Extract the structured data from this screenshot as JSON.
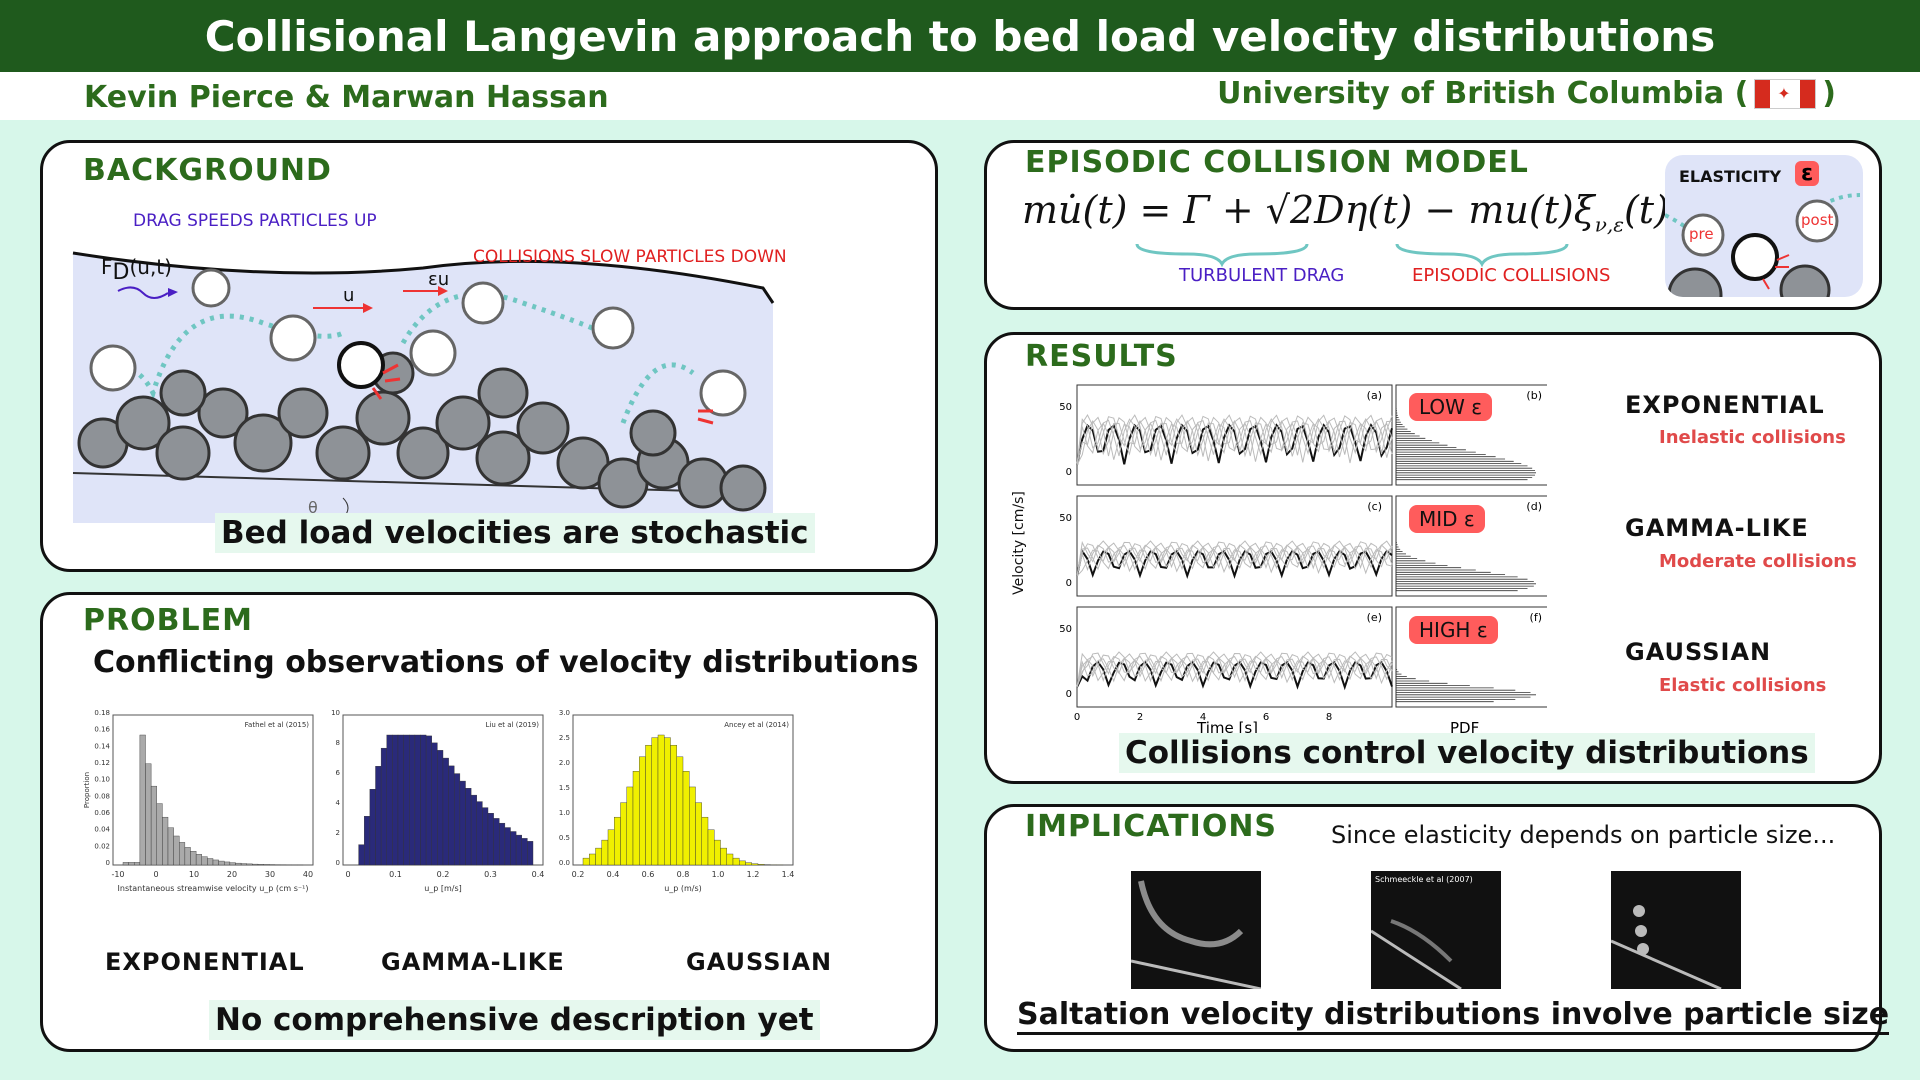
{
  "header": {
    "title": "Collisional Langevin approach to bed load velocity distributions",
    "authors": "Kevin Pierce & Marwan Hassan",
    "university": "University of British Columbia (",
    "university_close": ")"
  },
  "background": {
    "title": "BACKGROUND",
    "drag_label": "DRAG SPEEDS PARTICLES UP",
    "collision_label": "COLLISIONS SLOW PARTICLES DOWN",
    "force_label": "F",
    "force_sub": "D",
    "force_args": "(u,t)",
    "u_label": "u",
    "eu_label": "εu",
    "theta_label": "θ",
    "takeaway": "Bed load velocities are stochastic"
  },
  "problem": {
    "title": "PROBLEM",
    "subtitle": "Conflicting observations of velocity distributions",
    "takeaway": "No comprehensive description yet",
    "plots": [
      {
        "label": "EXPONENTIAL",
        "source": "Fathel et al (2015)",
        "xlabel": "Instantaneous streamwise velocity u_p (cm s⁻¹)",
        "ylabel": "Proportion",
        "xticks": [
          "-10",
          "0",
          "10",
          "20",
          "30",
          "40"
        ],
        "yticks": [
          "0",
          "0.02",
          "0.04",
          "0.06",
          "0.08",
          "0.10",
          "0.12",
          "0.14",
          "0.16",
          "0.18"
        ]
      },
      {
        "label": "GAMMA-LIKE",
        "source": "Liu et al (2019)",
        "xlabel": "u_p [m/s]",
        "xticks": [
          "0",
          "0.1",
          "0.2",
          "0.3",
          "0.4"
        ],
        "yticks": [
          "0",
          "2",
          "4",
          "6",
          "8",
          "10"
        ]
      },
      {
        "label": "GAUSSIAN",
        "source": "Ancey et al (2014)",
        "xlabel": "u_p (m/s)",
        "xticks": [
          "0.2",
          "0.4",
          "0.6",
          "0.8",
          "1.0",
          "1.2",
          "1.4"
        ],
        "yticks": [
          "0.0",
          "0.5",
          "1.0",
          "1.5",
          "2.0",
          "2.5",
          "3.0"
        ]
      }
    ]
  },
  "model": {
    "title": "EPISODIC COLLISION MODEL",
    "equation": "mu̇(t) = Γ + √2Dη(t) − mu(t)ξ",
    "equation_sub": "ν,ε",
    "equation_end": "(t)",
    "drag_label": "TURBULENT DRAG",
    "collision_label": "EPISODIC COLLISIONS",
    "elasticity_label": "ELASTICITY",
    "epsilon": "ε",
    "pre_label": "pre",
    "post_label": "post"
  },
  "results": {
    "title": "RESULTS",
    "ylabel": "Velocity [cm/s]",
    "xlabel": "Time [s]",
    "pdf_label": "PDF",
    "takeaway": "Collisions control velocity distributions",
    "rows": [
      {
        "panel_a": "(a)",
        "panel_b": "(b)",
        "badge": "LOW  ε",
        "name": "EXPONENTIAL",
        "desc": "Inelastic collisions"
      },
      {
        "panel_a": "(c)",
        "panel_b": "(d)",
        "badge": "MID  ε",
        "name": "GAMMA-LIKE",
        "desc": "Moderate collisions"
      },
      {
        "panel_a": "(e)",
        "panel_b": "(f)",
        "badge": "HIGH ε",
        "name": "GAUSSIAN",
        "desc": "Elastic collisions"
      }
    ],
    "yticks": [
      "50",
      "0"
    ],
    "xticks": [
      "0",
      "2",
      "4",
      "6",
      "8"
    ]
  },
  "implications": {
    "title": "IMPLICATIONS",
    "intro": "Since elasticity depends on particle size...",
    "photo_credit": "Schmeeckle et al (2007)",
    "takeaway": "Saltation velocity distributions involve particle size"
  },
  "colors": {
    "header_green": "#1f5a1d",
    "title_green": "#2c6b1c",
    "accent_red": "#e04a4a",
    "purple": "#4a1fc4",
    "teal": "#6fc6c2"
  }
}
